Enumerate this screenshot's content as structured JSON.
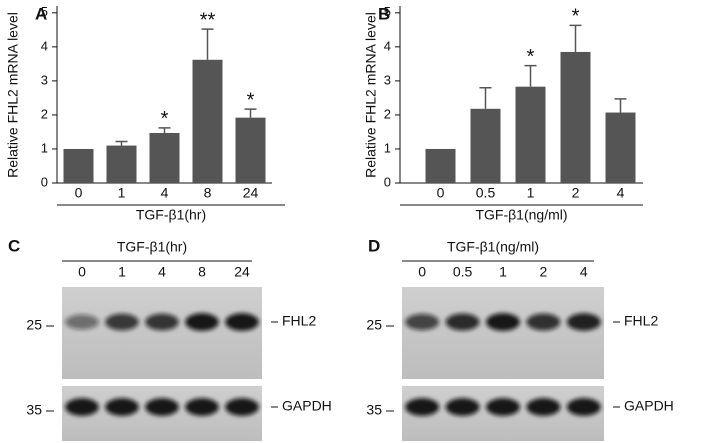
{
  "chart_data": [
    {
      "type": "bar",
      "panel_label": "A",
      "ylabel": "Relative FHL2 mRNA level",
      "xlabel": "TGF-β1(hr)",
      "categories": [
        "0",
        "1",
        "4",
        "8",
        "24"
      ],
      "values": [
        1.0,
        1.1,
        1.47,
        3.62,
        1.92
      ],
      "errors": [
        0,
        0.12,
        0.15,
        0.9,
        0.25
      ],
      "annotations": [
        null,
        null,
        "*",
        "**",
        "*"
      ],
      "color": "#555555",
      "ylim": [
        0,
        5.2
      ],
      "yticks": [
        0,
        1,
        2,
        3,
        4,
        5
      ]
    },
    {
      "type": "bar",
      "panel_label": "B",
      "ylabel": "Relative FHL2 mRNA level",
      "xlabel": "TGF-β1(ng/ml)",
      "categories": [
        "0",
        "0.5",
        "1",
        "2",
        "4"
      ],
      "values": [
        1.0,
        2.18,
        2.83,
        3.85,
        2.07
      ],
      "errors": [
        0,
        0.62,
        0.62,
        0.78,
        0.4
      ],
      "annotations": [
        null,
        null,
        "*",
        "*",
        null
      ],
      "color": "#555555",
      "ylim": [
        0,
        5.2
      ],
      "yticks": [
        0,
        1,
        2,
        3,
        4,
        5
      ]
    }
  ],
  "blots": [
    {
      "panel_label": "C",
      "title": "TGF-β1(hr)",
      "lanes": [
        "0",
        "1",
        "4",
        "8",
        "24"
      ],
      "proteins": [
        {
          "name": "FHL2",
          "marker": "25"
        },
        {
          "name": "GAPDH",
          "marker": "35"
        }
      ]
    },
    {
      "panel_label": "D",
      "title": "TGF-β1(ng/ml)",
      "lanes": [
        "0",
        "0.5",
        "1",
        "2",
        "4"
      ],
      "proteins": [
        {
          "name": "FHL2",
          "marker": "25"
        },
        {
          "name": "GAPDH",
          "marker": "35"
        }
      ]
    }
  ]
}
